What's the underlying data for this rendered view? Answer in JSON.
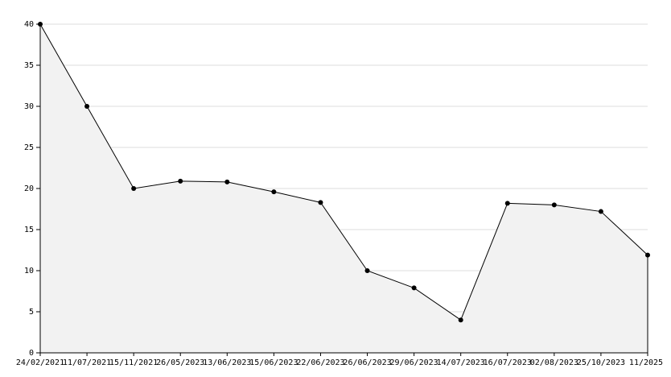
{
  "chart_data": {
    "type": "line",
    "categories": [
      "24/02/2021",
      "11/07/2021",
      "15/11/2021",
      "26/05/2023",
      "13/06/2023",
      "15/06/2023",
      "22/06/2023",
      "26/06/2023",
      "29/06/2023",
      "14/07/2023",
      "16/07/2023",
      "02/08/2023",
      "25/10/2023",
      "11/2025"
    ],
    "values": [
      40,
      30,
      20,
      20.9,
      20.8,
      19.6,
      18.3,
      10,
      7.9,
      4,
      18.2,
      18,
      17.2,
      11.9
    ],
    "color": "#000000",
    "area_color": "#f2f2f2",
    "ylim": [
      0,
      40
    ],
    "yticks": [
      0,
      5,
      10,
      15,
      20,
      25,
      30,
      35,
      40
    ],
    "grid": true
  }
}
